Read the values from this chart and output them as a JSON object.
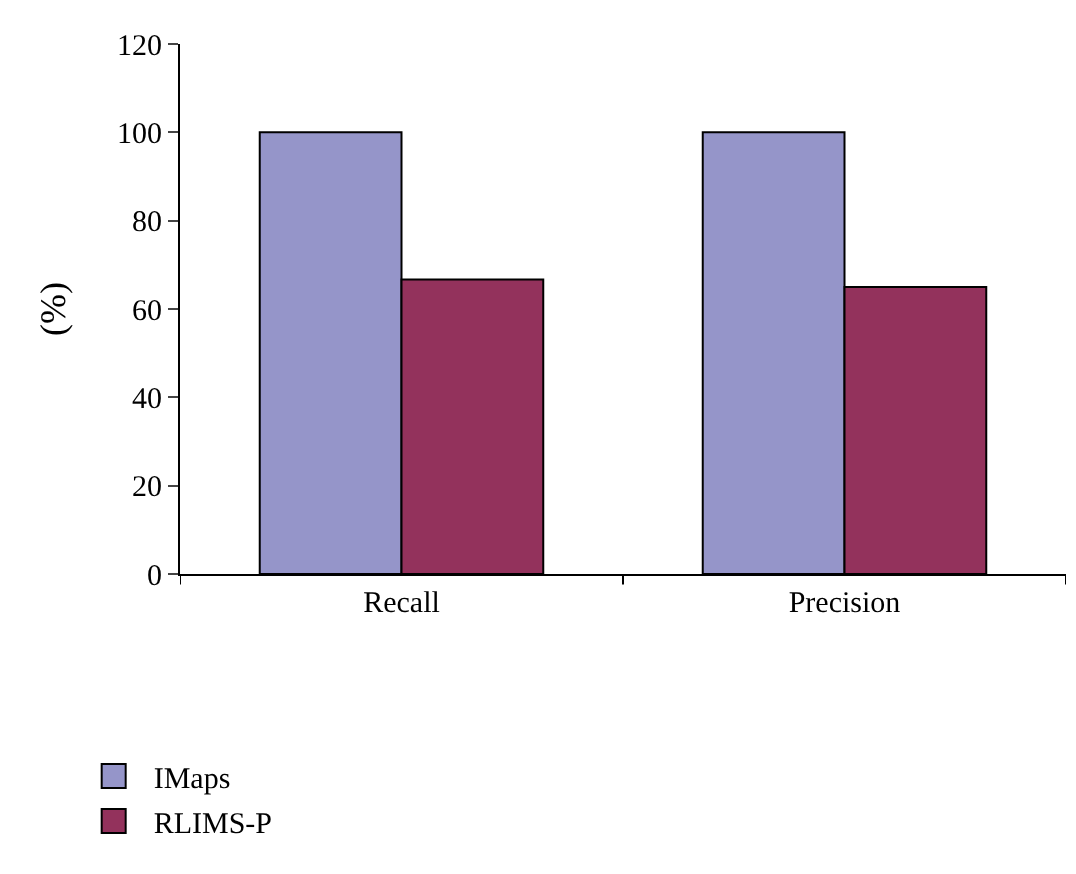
{
  "chart_data": {
    "type": "bar",
    "ylabel": "(%)",
    "categories": [
      "Recall",
      "Precision"
    ],
    "series": [
      {
        "name": "IMaps",
        "color": "#9595c9",
        "values": [
          100,
          100
        ]
      },
      {
        "name": "RLIMS-P",
        "color": "#93325c",
        "values": [
          66.7,
          65
        ]
      }
    ],
    "ylim": [
      0,
      120
    ],
    "yticks": [
      0,
      20,
      40,
      60,
      80,
      100,
      120
    ],
    "legend": "bottom left"
  }
}
